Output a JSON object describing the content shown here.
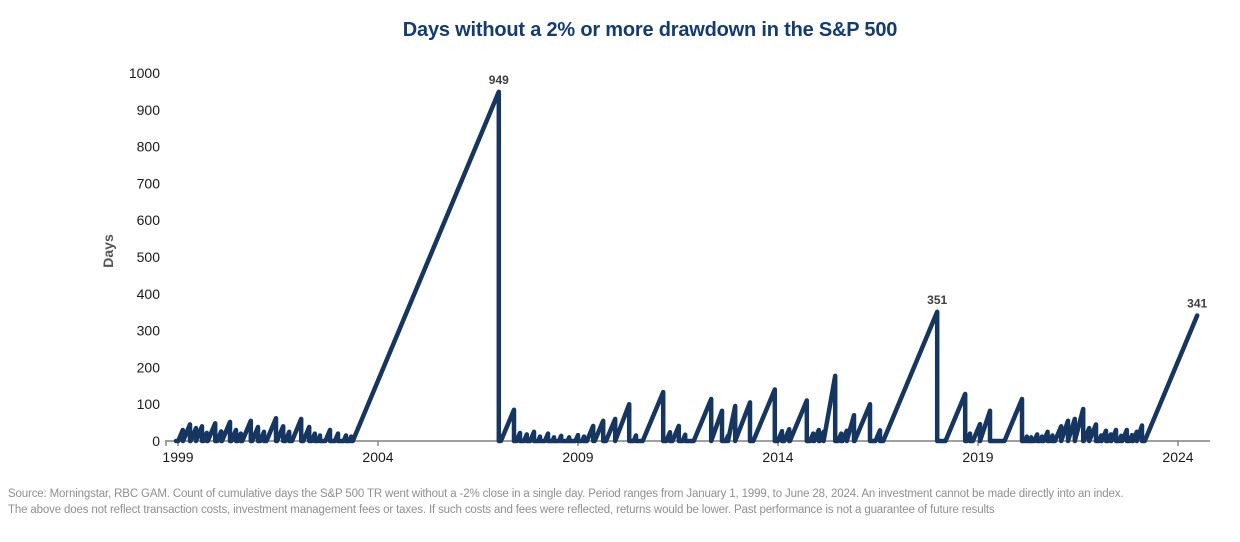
{
  "title": "Days without a 2% or more drawdown in the S&P 500",
  "colors": {
    "line": "#153660",
    "title": "#123c72",
    "axis": "#808080",
    "tick_text": "#1a1a1a",
    "data_label": "#3f3f3f",
    "y_axis_title": "#555555",
    "source_text": "#8f8f8f",
    "background": "#ffffff"
  },
  "chart_data": {
    "type": "line",
    "subtype": "sawtooth-streak-counter",
    "title": "Days without a 2% or more drawdown in the S&P 500",
    "xlabel": "",
    "ylabel": "Days",
    "x_ticks": [
      1999,
      2004,
      2009,
      2014,
      2019,
      2024
    ],
    "y_ticks": [
      0,
      100,
      200,
      300,
      400,
      500,
      600,
      700,
      800,
      900,
      1000
    ],
    "ylim": [
      0,
      1000
    ],
    "xlim": [
      1998.95,
      2024.8
    ],
    "grid": false,
    "legend": false,
    "slope_days_per_year": 260,
    "series_start_year": 1998.95,
    "teeth_peak_year_and_days": [
      [
        1999.12,
        30
      ],
      [
        1999.3,
        45
      ],
      [
        1999.45,
        35
      ],
      [
        1999.6,
        40
      ],
      [
        1999.72,
        22
      ],
      [
        1999.93,
        48
      ],
      [
        2000.08,
        26
      ],
      [
        2000.3,
        52
      ],
      [
        2000.45,
        30
      ],
      [
        2000.57,
        20
      ],
      [
        2000.82,
        55
      ],
      [
        2001.0,
        38
      ],
      [
        2001.15,
        25
      ],
      [
        2001.45,
        62
      ],
      [
        2001.63,
        40
      ],
      [
        2001.78,
        25
      ],
      [
        2002.08,
        60
      ],
      [
        2002.28,
        38
      ],
      [
        2002.42,
        20
      ],
      [
        2002.55,
        15
      ],
      [
        2002.8,
        30
      ],
      [
        2003.0,
        20
      ],
      [
        2003.2,
        15
      ],
      [
        2003.33,
        12
      ],
      [
        2007.02,
        949
      ],
      [
        2007.4,
        85
      ],
      [
        2007.55,
        22
      ],
      [
        2007.72,
        18
      ],
      [
        2007.9,
        25
      ],
      [
        2008.05,
        12
      ],
      [
        2008.25,
        20
      ],
      [
        2008.4,
        10
      ],
      [
        2008.58,
        14
      ],
      [
        2008.78,
        10
      ],
      [
        2009.0,
        16
      ],
      [
        2009.15,
        12
      ],
      [
        2009.38,
        41
      ],
      [
        2009.63,
        55
      ],
      [
        2009.93,
        60
      ],
      [
        2010.28,
        100
      ],
      [
        2010.45,
        15
      ],
      [
        2011.13,
        133
      ],
      [
        2011.3,
        24
      ],
      [
        2011.52,
        41
      ],
      [
        2011.68,
        17
      ],
      [
        2012.33,
        114
      ],
      [
        2012.6,
        82
      ],
      [
        2012.75,
        14
      ],
      [
        2012.93,
        95
      ],
      [
        2013.3,
        105
      ],
      [
        2013.92,
        140
      ],
      [
        2014.1,
        27
      ],
      [
        2014.28,
        32
      ],
      [
        2014.72,
        110
      ],
      [
        2014.88,
        20
      ],
      [
        2015.02,
        30
      ],
      [
        2015.14,
        25
      ],
      [
        2015.43,
        177
      ],
      [
        2015.58,
        20
      ],
      [
        2015.72,
        28
      ],
      [
        2015.9,
        70
      ],
      [
        2016.3,
        100
      ],
      [
        2016.55,
        29
      ],
      [
        2017.98,
        351
      ],
      [
        2018.68,
        128
      ],
      [
        2018.8,
        20
      ],
      [
        2019.05,
        46
      ],
      [
        2019.3,
        82
      ],
      [
        2020.1,
        114
      ],
      [
        2020.22,
        12
      ],
      [
        2020.33,
        10
      ],
      [
        2020.48,
        18
      ],
      [
        2020.6,
        12
      ],
      [
        2020.74,
        25
      ],
      [
        2020.86,
        15
      ],
      [
        2021.08,
        40
      ],
      [
        2021.25,
        55
      ],
      [
        2021.42,
        60
      ],
      [
        2021.63,
        87
      ],
      [
        2021.78,
        35
      ],
      [
        2021.95,
        45
      ],
      [
        2022.08,
        15
      ],
      [
        2022.2,
        28
      ],
      [
        2022.32,
        18
      ],
      [
        2022.45,
        30
      ],
      [
        2022.58,
        14
      ],
      [
        2022.72,
        30
      ],
      [
        2022.85,
        16
      ],
      [
        2022.97,
        25
      ],
      [
        2023.1,
        42
      ],
      [
        2024.48,
        341
      ]
    ],
    "final_tooth_open_ended": true,
    "annotations": [
      {
        "label": "949",
        "year": 2007.02,
        "value": 949
      },
      {
        "label": "351",
        "year": 2017.98,
        "value": 351
      },
      {
        "label": "341",
        "year": 2024.48,
        "value": 341
      }
    ]
  },
  "footnote": {
    "line1": "Source: Morningstar, RBC GAM. Count of cumulative days the S&P 500 TR went without a -2% close in a single day. Period ranges from January 1, 1999, to June 28, 2024. An investment cannot be made directly into an index.",
    "line2": "The above does not reflect transaction costs, investment management fees or taxes. If such costs and fees were reflected, returns would be lower. Past performance is not a guarantee of future results"
  }
}
